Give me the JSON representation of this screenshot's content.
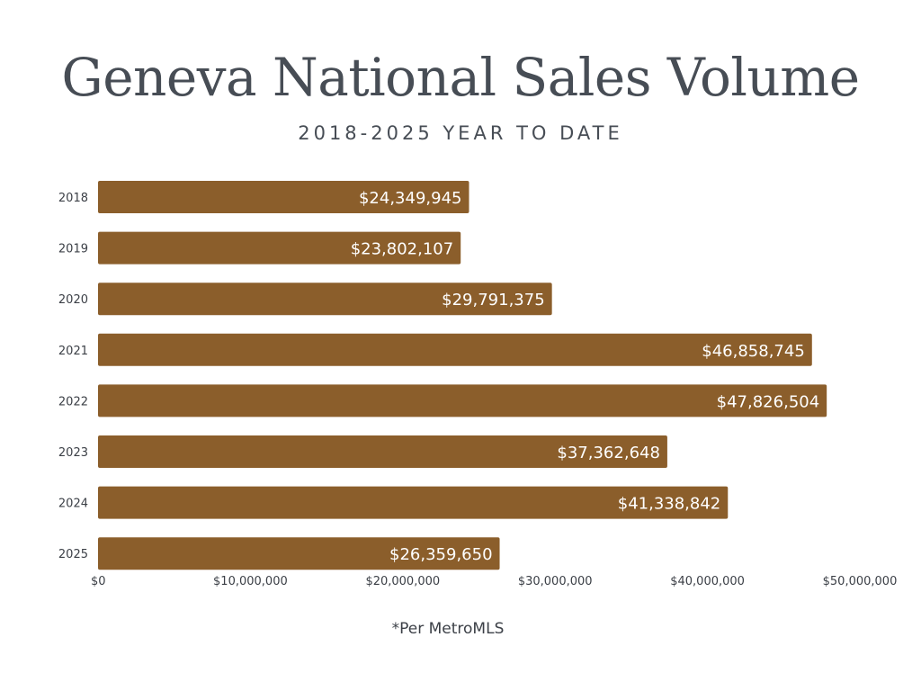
{
  "header": {
    "title": "Geneva National Sales Volume",
    "subtitle": "2018-2025 YEAR TO DATE"
  },
  "footnote": "*Per MetroMLS",
  "colors": {
    "bar": "#8b5e2b",
    "bar_label": "#ffffff",
    "text": "#474d55",
    "axis_text": "#3c4047"
  },
  "chart_data": {
    "type": "bar",
    "orientation": "horizontal",
    "title": "Geneva National Sales Volume",
    "subtitle": "2018-2025 YEAR TO DATE",
    "categories": [
      "2018",
      "2019",
      "2020",
      "2021",
      "2022",
      "2023",
      "2024",
      "2025"
    ],
    "values": [
      24349945,
      23802107,
      29791375,
      46858745,
      47826504,
      37362648,
      41338842,
      26359650
    ],
    "data_labels": [
      "$24,349,945",
      "$23,802,107",
      "$29,791,375",
      "$46,858,745",
      "$47,826,504",
      "$37,362,648",
      "$41,338,842",
      "$26,359,650"
    ],
    "xlim": [
      0,
      50000000
    ],
    "x_ticks": [
      0,
      10000000,
      20000000,
      30000000,
      40000000,
      50000000
    ],
    "x_tick_labels": [
      "$0",
      "$10,000,000",
      "$20,000,000",
      "$30,000,000",
      "$40,000,000",
      "$50,000,000"
    ],
    "grid": false,
    "legend": "none"
  }
}
